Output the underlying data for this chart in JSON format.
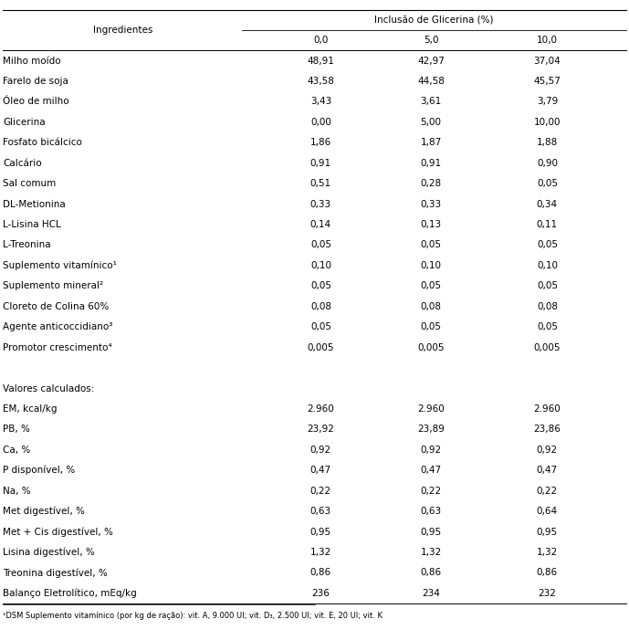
{
  "header_main": "Inclusão de Glicerina (%)",
  "col_header_ingredientes": "Ingredientes",
  "col_headers": [
    "0,0",
    "5,0",
    "10,0"
  ],
  "ingredientes_rows": [
    [
      "Milho moído",
      "48,91",
      "42,97",
      "37,04"
    ],
    [
      "Farelo de soja",
      "43,58",
      "44,58",
      "45,57"
    ],
    [
      "Óleo de milho",
      "3,43",
      "3,61",
      "3,79"
    ],
    [
      "Glicerina",
      "0,00",
      "5,00",
      "10,00"
    ],
    [
      "Fosfato bicálcico",
      "1,86",
      "1,87",
      "1,88"
    ],
    [
      "Calcário",
      "0,91",
      "0,91",
      "0,90"
    ],
    [
      "Sal comum",
      "0,51",
      "0,28",
      "0,05"
    ],
    [
      "DL-Metionina",
      "0,33",
      "0,33",
      "0,34"
    ],
    [
      "L-Lisina HCL",
      "0,14",
      "0,13",
      "0,11"
    ],
    [
      "L-Treonina",
      "0,05",
      "0,05",
      "0,05"
    ],
    [
      "Suplemento vitamínico¹",
      "0,10",
      "0,10",
      "0,10"
    ],
    [
      "Suplemento mineral²",
      "0,05",
      "0,05",
      "0,05"
    ],
    [
      "Cloreto de Colina 60%",
      "0,08",
      "0,08",
      "0,08"
    ],
    [
      "Agente anticoccidiano³",
      "0,05",
      "0,05",
      "0,05"
    ],
    [
      "Promotor crescimento⁴",
      "0,005",
      "0,005",
      "0,005"
    ]
  ],
  "valores_label": "Valores calculados:",
  "valores_rows": [
    [
      "EM, kcal/kg",
      "2.960",
      "2.960",
      "2.960"
    ],
    [
      "PB, %",
      "23,92",
      "23,89",
      "23,86"
    ],
    [
      "Ca, %",
      "0,92",
      "0,92",
      "0,92"
    ],
    [
      "P disponível, %",
      "0,47",
      "0,47",
      "0,47"
    ],
    [
      "Na, %",
      "0,22",
      "0,22",
      "0,22"
    ],
    [
      "Met digestível, %",
      "0,63",
      "0,63",
      "0,64"
    ],
    [
      "Met + Cis digestível, %",
      "0,95",
      "0,95",
      "0,95"
    ],
    [
      "Lisina digestível, %",
      "1,32",
      "1,32",
      "1,32"
    ],
    [
      "Treonina digestível, %",
      "0,86",
      "0,86",
      "0,86"
    ],
    [
      "Balanço Eletrolítico, mEq/kg",
      "236",
      "234",
      "232"
    ]
  ],
  "footnote": "¹DSM Suplemento vitamínico (por kg de ração): vit. A, 9.000 UI; vit. D₃, 2.500 UI; vit. E, 20 UI; vit. K",
  "bg_color": "#ffffff",
  "line_color": "#000000",
  "font_size": 7.5,
  "footnote_font_size": 6.0,
  "fig_width": 6.89,
  "fig_height": 7.01,
  "dpi": 100
}
